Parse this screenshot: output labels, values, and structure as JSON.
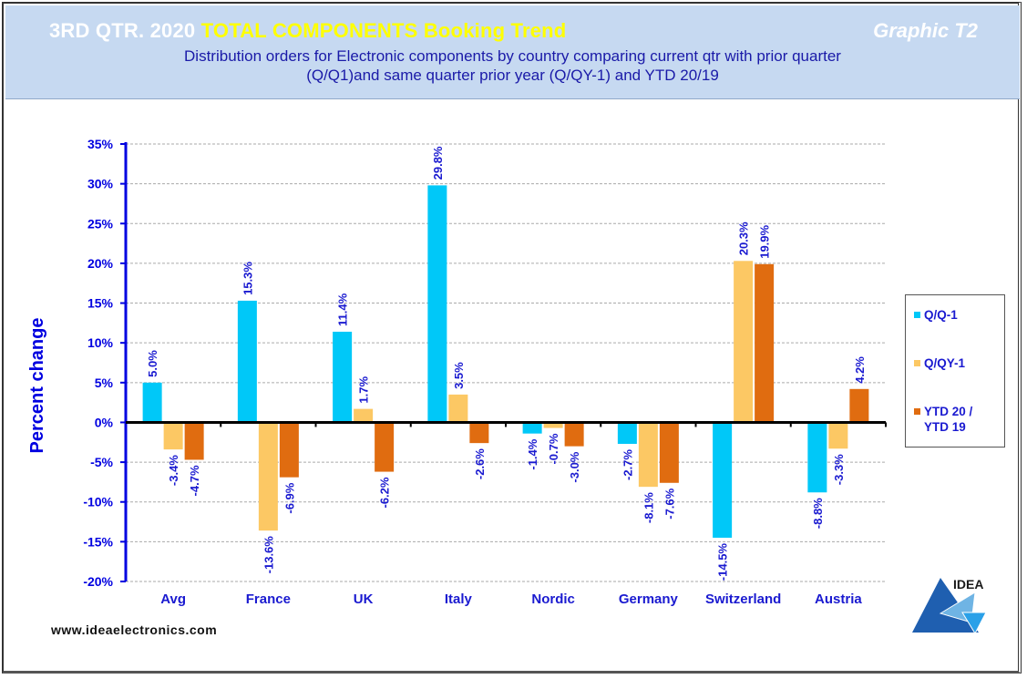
{
  "header": {
    "title_prefix": "3RD QTR. 2020 ",
    "title_highlight": "TOTAL COMPONENTS  Booking Trend",
    "graphic_label": "Graphic T2",
    "subtitle_line1": "Distribution  orders for Electronic components by country comparing  current qtr with prior quarter",
    "subtitle_line2": "(Q/Q1)and  same quarter prior year (Q/QY-1)  and YTD  20/19"
  },
  "footer": {
    "url": "www.ideaelectronics.com"
  },
  "logo": {
    "text": "IDEA"
  },
  "colors": {
    "qq": "#00c8f8",
    "qqy": "#fcc864",
    "ytd": "#e06c10",
    "axis": "#0000e0",
    "label": "#1a1ad0"
  },
  "chart_data": {
    "type": "bar",
    "title": "3RD QTR. 2020 TOTAL COMPONENTS Booking Trend",
    "xlabel": "",
    "ylabel": "Percent change",
    "ylim": [
      -20,
      35
    ],
    "ytick_step": 5,
    "yticks": [
      "35%",
      "30%",
      "25%",
      "20%",
      "15%",
      "10%",
      "5%",
      "0%",
      "-5%",
      "-10%",
      "-15%",
      "-20%"
    ],
    "grid": true,
    "legend_position": "right",
    "categories": [
      "Avg",
      "France",
      "UK",
      "Italy",
      "Nordic",
      "Germany",
      "Switzerland",
      "Austria"
    ],
    "series": [
      {
        "name": "Q/Q-1",
        "color": "#00c8f8",
        "values": [
          5.0,
          15.3,
          11.4,
          29.8,
          -1.4,
          -2.7,
          -14.5,
          -8.8
        ],
        "labels": [
          "5.0%",
          "15.3%",
          "11.4%",
          "29.8%",
          "-1.4%",
          "-2.7%",
          "-14.5%",
          "-8.8%"
        ]
      },
      {
        "name": "Q/QY-1",
        "color": "#fcc864",
        "values": [
          -3.4,
          -13.6,
          1.7,
          3.5,
          -0.7,
          -8.1,
          20.3,
          -3.3
        ],
        "labels": [
          "-3.4%",
          "-13.6%",
          "1.7%",
          "3.5%",
          "-0.7%",
          "-8.1%",
          "20.3%",
          "-3.3%"
        ]
      },
      {
        "name": "YTD 20 / YTD 19",
        "color": "#e06c10",
        "values": [
          -4.7,
          -6.9,
          -6.2,
          -2.6,
          -3.0,
          -7.6,
          19.9,
          4.2
        ],
        "labels": [
          "-4.7%",
          "-6.9%",
          "-6.2%",
          "-2.6%",
          "-3.0%",
          "-7.6%",
          "19.9%",
          "4.2%"
        ]
      }
    ],
    "legend": [
      "Q/Q-1",
      "Q/QY-1",
      "YTD 20 /",
      "YTD 19"
    ]
  }
}
